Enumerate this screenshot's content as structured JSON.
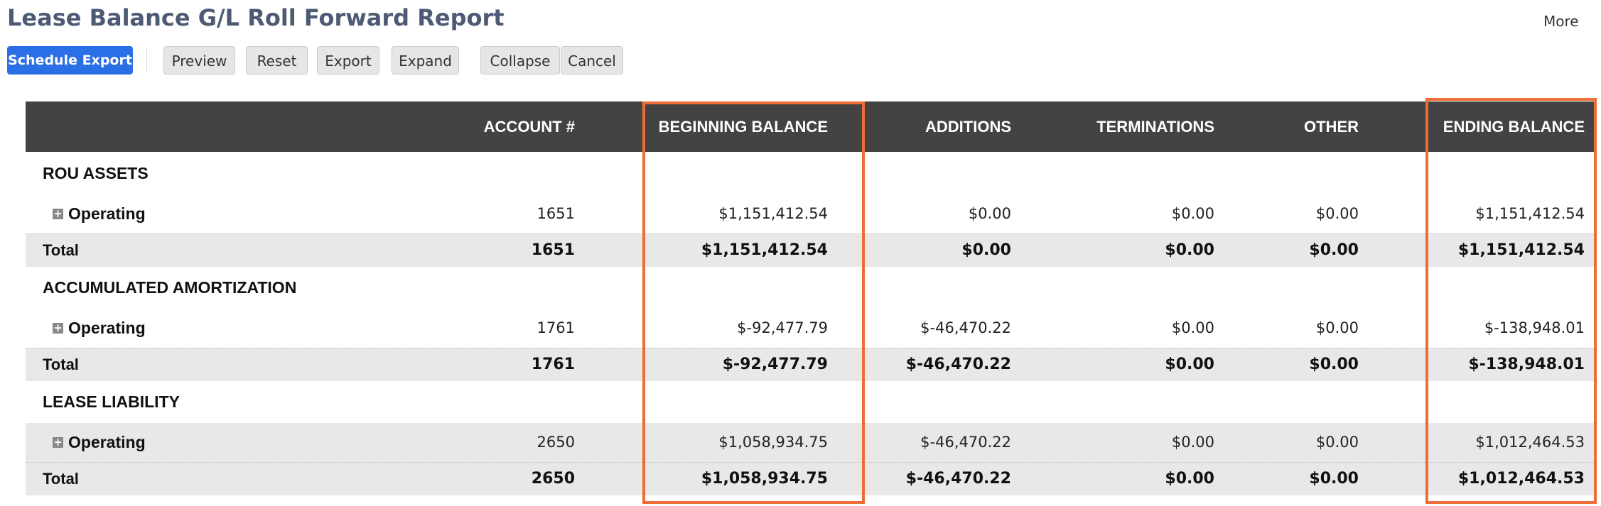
{
  "header": {
    "title": "Lease Balance G/L Roll Forward Report",
    "more": "More"
  },
  "toolbar": {
    "primary": "Schedule Export",
    "buttons": [
      "Preview",
      "Reset",
      "Export",
      "Expand",
      "Collapse",
      "Cancel"
    ]
  },
  "table": {
    "columns": [
      "ACCOUNT #",
      "BEGINNING BALANCE",
      "ADDITIONS",
      "TERMINATIONS",
      "OTHER",
      "ENDING BALANCE"
    ],
    "groups": [
      {
        "title": "ROU ASSETS",
        "operating": [
          "Operating",
          "1651",
          "$1,151,412.54",
          "$0.00",
          "$0.00",
          "$0.00",
          "$1,151,412.54"
        ],
        "total": [
          "Total",
          "1651",
          "$1,151,412.54",
          "$0.00",
          "$0.00",
          "$0.00",
          "$1,151,412.54"
        ]
      },
      {
        "title": "ACCUMULATED AMORTIZATION",
        "operating": [
          "Operating",
          "1761",
          "$-92,477.79",
          "$-46,470.22",
          "$0.00",
          "$0.00",
          "$-138,948.01"
        ],
        "total": [
          "Total",
          "1761",
          "$-92,477.79",
          "$-46,470.22",
          "$0.00",
          "$0.00",
          "$-138,948.01"
        ]
      },
      {
        "title": "LEASE LIABILITY",
        "operating": [
          "Operating",
          "2650",
          "$1,058,934.75",
          "$-46,470.22",
          "$0.00",
          "$0.00",
          "$1,012,464.53"
        ],
        "total": [
          "Total",
          "2650",
          "$1,058,934.75",
          "$-46,470.22",
          "$0.00",
          "$0.00",
          "$1,012,464.53"
        ]
      }
    ]
  }
}
